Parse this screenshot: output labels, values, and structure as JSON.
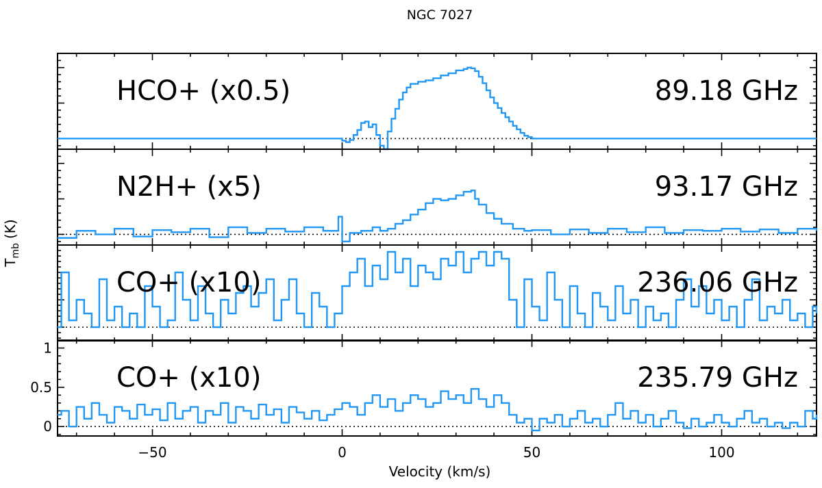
{
  "chart_data": {
    "type": "line",
    "title": "NGC 7027",
    "xlabel": "Velocity (km/s)",
    "ylabel_main": "T",
    "ylabel_sub": "mb",
    "ylabel_unit": "(K)",
    "xlim": [
      -75,
      125
    ],
    "x_ticks": [
      -50,
      0,
      50,
      100
    ],
    "x_tick_labels": [
      "−50",
      "0",
      "50",
      "100"
    ],
    "colors": {
      "spectrum": "#2196f3",
      "axes": "#000000"
    },
    "panels": [
      {
        "label": "HCO+ (x0.5)",
        "frequency": "89.18 GHz",
        "ylim": [
          -0.15,
          1.2
        ],
        "points": [
          [
            -75,
            0.0
          ],
          [
            -60,
            0.0
          ],
          [
            -40,
            0.0
          ],
          [
            -20,
            0.0
          ],
          [
            -2,
            0.0
          ],
          [
            0,
            -0.03
          ],
          [
            1,
            -0.05
          ],
          [
            2,
            -0.02
          ],
          [
            3,
            0.05
          ],
          [
            4,
            0.12
          ],
          [
            5,
            0.22
          ],
          [
            6,
            0.24
          ],
          [
            7,
            0.16
          ],
          [
            8,
            0.2
          ],
          [
            9,
            0.05
          ],
          [
            10,
            -0.1
          ],
          [
            11,
            -0.18
          ],
          [
            12,
            0.1
          ],
          [
            13,
            0.28
          ],
          [
            14,
            0.42
          ],
          [
            15,
            0.55
          ],
          [
            16,
            0.65
          ],
          [
            17,
            0.72
          ],
          [
            18,
            0.77
          ],
          [
            20,
            0.8
          ],
          [
            22,
            0.82
          ],
          [
            24,
            0.85
          ],
          [
            26,
            0.89
          ],
          [
            28,
            0.92
          ],
          [
            30,
            0.96
          ],
          [
            32,
            0.98
          ],
          [
            33,
            1.0
          ],
          [
            34,
            0.99
          ],
          [
            35,
            0.95
          ],
          [
            36,
            0.87
          ],
          [
            37,
            0.78
          ],
          [
            38,
            0.68
          ],
          [
            39,
            0.58
          ],
          [
            40,
            0.5
          ],
          [
            41,
            0.43
          ],
          [
            42,
            0.36
          ],
          [
            43,
            0.3
          ],
          [
            44,
            0.24
          ],
          [
            45,
            0.18
          ],
          [
            46,
            0.13
          ],
          [
            47,
            0.08
          ],
          [
            48,
            0.04
          ],
          [
            49,
            0.02
          ],
          [
            50,
            0.0
          ],
          [
            70,
            0.0
          ],
          [
            90,
            0.0
          ],
          [
            110,
            0.0
          ],
          [
            125,
            0.0
          ]
        ]
      },
      {
        "label": "N2H+    (x5)",
        "frequency": "93.17 GHz",
        "ylim": [
          -0.15,
          1.2
        ],
        "points": [
          [
            -75,
            -0.05
          ],
          [
            -70,
            0.05
          ],
          [
            -65,
            0.0
          ],
          [
            -60,
            0.08
          ],
          [
            -55,
            -0.03
          ],
          [
            -50,
            0.06
          ],
          [
            -45,
            0.03
          ],
          [
            -40,
            0.08
          ],
          [
            -35,
            -0.04
          ],
          [
            -30,
            0.1
          ],
          [
            -25,
            0.02
          ],
          [
            -20,
            0.08
          ],
          [
            -15,
            0.04
          ],
          [
            -10,
            0.1
          ],
          [
            -5,
            0.05
          ],
          [
            -1,
            0.25
          ],
          [
            0,
            -0.1
          ],
          [
            2,
            0.02
          ],
          [
            5,
            0.05
          ],
          [
            8,
            0.1
          ],
          [
            10,
            0.05
          ],
          [
            12,
            0.08
          ],
          [
            14,
            0.15
          ],
          [
            16,
            0.2
          ],
          [
            18,
            0.28
          ],
          [
            20,
            0.35
          ],
          [
            22,
            0.44
          ],
          [
            24,
            0.5
          ],
          [
            26,
            0.48
          ],
          [
            28,
            0.5
          ],
          [
            30,
            0.55
          ],
          [
            32,
            0.6
          ],
          [
            34,
            0.62
          ],
          [
            35,
            0.5
          ],
          [
            36,
            0.42
          ],
          [
            38,
            0.3
          ],
          [
            40,
            0.22
          ],
          [
            42,
            0.15
          ],
          [
            45,
            0.08
          ],
          [
            48,
            0.05
          ],
          [
            50,
            0.06
          ],
          [
            55,
            0.0
          ],
          [
            60,
            0.07
          ],
          [
            65,
            0.02
          ],
          [
            70,
            0.08
          ],
          [
            75,
            0.03
          ],
          [
            80,
            0.1
          ],
          [
            85,
            0.02
          ],
          [
            90,
            0.06
          ],
          [
            95,
            0.05
          ],
          [
            100,
            0.08
          ],
          [
            105,
            0.04
          ],
          [
            110,
            0.07
          ],
          [
            115,
            0.02
          ],
          [
            120,
            0.08
          ],
          [
            125,
            0.05
          ]
        ]
      },
      {
        "label": "CO+  (x10)",
        "frequency": "236.06 GHz",
        "ylim": [
          0.9,
          1.6
        ],
        "points": [
          [
            -75,
            1.0
          ],
          [
            -74,
            1.4
          ],
          [
            -72,
            1.05
          ],
          [
            -70,
            1.2
          ],
          [
            -68,
            1.1
          ],
          [
            -66,
            1.0
          ],
          [
            -64,
            1.35
          ],
          [
            -62,
            1.05
          ],
          [
            -60,
            1.15
          ],
          [
            -58,
            1.0
          ],
          [
            -56,
            1.1
          ],
          [
            -54,
            1.0
          ],
          [
            -52,
            1.3
          ],
          [
            -50,
            1.15
          ],
          [
            -48,
            1.0
          ],
          [
            -46,
            1.05
          ],
          [
            -44,
            1.4
          ],
          [
            -42,
            1.2
          ],
          [
            -40,
            1.05
          ],
          [
            -38,
            1.3
          ],
          [
            -36,
            1.1
          ],
          [
            -34,
            1.0
          ],
          [
            -32,
            1.2
          ],
          [
            -30,
            1.1
          ],
          [
            -28,
            1.25
          ],
          [
            -26,
            1.3
          ],
          [
            -24,
            1.15
          ],
          [
            -22,
            1.25
          ],
          [
            -20,
            1.35
          ],
          [
            -18,
            1.05
          ],
          [
            -16,
            1.2
          ],
          [
            -14,
            1.35
          ],
          [
            -12,
            1.1
          ],
          [
            -10,
            1.0
          ],
          [
            -8,
            1.25
          ],
          [
            -6,
            1.15
          ],
          [
            -4,
            1.0
          ],
          [
            -2,
            1.1
          ],
          [
            0,
            1.3
          ],
          [
            2,
            1.4
          ],
          [
            4,
            1.5
          ],
          [
            6,
            1.3
          ],
          [
            8,
            1.45
          ],
          [
            10,
            1.35
          ],
          [
            12,
            1.55
          ],
          [
            14,
            1.4
          ],
          [
            16,
            1.5
          ],
          [
            18,
            1.3
          ],
          [
            20,
            1.45
          ],
          [
            22,
            1.4
          ],
          [
            24,
            1.35
          ],
          [
            26,
            1.5
          ],
          [
            28,
            1.45
          ],
          [
            30,
            1.55
          ],
          [
            32,
            1.4
          ],
          [
            34,
            1.5
          ],
          [
            36,
            1.55
          ],
          [
            38,
            1.45
          ],
          [
            40,
            1.55
          ],
          [
            42,
            1.5
          ],
          [
            44,
            1.2
          ],
          [
            46,
            1.0
          ],
          [
            48,
            1.35
          ],
          [
            50,
            1.15
          ],
          [
            52,
            1.05
          ],
          [
            54,
            1.4
          ],
          [
            56,
            1.2
          ],
          [
            58,
            1.0
          ],
          [
            60,
            1.3
          ],
          [
            62,
            1.1
          ],
          [
            64,
            1.0
          ],
          [
            66,
            1.25
          ],
          [
            68,
            1.15
          ],
          [
            70,
            1.05
          ],
          [
            72,
            1.3
          ],
          [
            74,
            1.1
          ],
          [
            76,
            1.2
          ],
          [
            78,
            1.0
          ],
          [
            80,
            1.15
          ],
          [
            82,
            1.05
          ],
          [
            84,
            1.1
          ],
          [
            86,
            1.0
          ],
          [
            88,
            1.2
          ],
          [
            90,
            1.35
          ],
          [
            92,
            1.15
          ],
          [
            94,
            1.3
          ],
          [
            96,
            1.1
          ],
          [
            98,
            1.2
          ],
          [
            100,
            1.05
          ],
          [
            102,
            1.15
          ],
          [
            104,
            1.0
          ],
          [
            106,
            1.2
          ],
          [
            108,
            1.35
          ],
          [
            110,
            1.05
          ],
          [
            112,
            1.15
          ],
          [
            114,
            1.1
          ],
          [
            116,
            1.2
          ],
          [
            118,
            1.05
          ],
          [
            120,
            1.1
          ],
          [
            122,
            1.0
          ],
          [
            124,
            1.15
          ],
          [
            125,
            1.1
          ]
        ]
      },
      {
        "label": "CO+  (x10)",
        "frequency": "235.79 GHz",
        "ylim": [
          -0.12,
          1.1
        ],
        "y_ticks": [
          0,
          0.5,
          1
        ],
        "y_tick_labels": [
          "0",
          "0.5",
          "1"
        ],
        "points": [
          [
            -75,
            0.15
          ],
          [
            -74,
            0.2
          ],
          [
            -72,
            0.0
          ],
          [
            -70,
            0.25
          ],
          [
            -68,
            0.1
          ],
          [
            -66,
            0.3
          ],
          [
            -64,
            0.15
          ],
          [
            -62,
            0.05
          ],
          [
            -60,
            0.25
          ],
          [
            -58,
            0.2
          ],
          [
            -56,
            0.1
          ],
          [
            -54,
            0.28
          ],
          [
            -52,
            0.15
          ],
          [
            -50,
            0.22
          ],
          [
            -48,
            0.08
          ],
          [
            -46,
            0.3
          ],
          [
            -44,
            0.1
          ],
          [
            -42,
            0.2
          ],
          [
            -40,
            0.25
          ],
          [
            -38,
            0.05
          ],
          [
            -36,
            0.2
          ],
          [
            -34,
            0.15
          ],
          [
            -32,
            0.3
          ],
          [
            -30,
            0.05
          ],
          [
            -28,
            0.25
          ],
          [
            -26,
            0.2
          ],
          [
            -24,
            0.1
          ],
          [
            -22,
            0.28
          ],
          [
            -20,
            0.15
          ],
          [
            -18,
            0.22
          ],
          [
            -16,
            0.05
          ],
          [
            -14,
            0.25
          ],
          [
            -12,
            0.18
          ],
          [
            -10,
            0.1
          ],
          [
            -8,
            0.2
          ],
          [
            -6,
            0.08
          ],
          [
            -4,
            0.15
          ],
          [
            -2,
            0.22
          ],
          [
            0,
            0.3
          ],
          [
            2,
            0.25
          ],
          [
            4,
            0.15
          ],
          [
            6,
            0.3
          ],
          [
            8,
            0.4
          ],
          [
            10,
            0.25
          ],
          [
            12,
            0.35
          ],
          [
            14,
            0.2
          ],
          [
            16,
            0.3
          ],
          [
            18,
            0.4
          ],
          [
            20,
            0.35
          ],
          [
            22,
            0.25
          ],
          [
            24,
            0.3
          ],
          [
            26,
            0.45
          ],
          [
            28,
            0.35
          ],
          [
            30,
            0.4
          ],
          [
            32,
            0.3
          ],
          [
            34,
            0.48
          ],
          [
            36,
            0.35
          ],
          [
            38,
            0.25
          ],
          [
            40,
            0.4
          ],
          [
            42,
            0.3
          ],
          [
            44,
            0.15
          ],
          [
            46,
            0.05
          ],
          [
            48,
            0.1
          ],
          [
            50,
            -0.05
          ],
          [
            52,
            0.1
          ],
          [
            54,
            0.05
          ],
          [
            56,
            0.15
          ],
          [
            58,
            0.0
          ],
          [
            60,
            0.1
          ],
          [
            62,
            0.2
          ],
          [
            64,
            0.05
          ],
          [
            66,
            0.1
          ],
          [
            68,
            0.0
          ],
          [
            70,
            0.15
          ],
          [
            72,
            0.3
          ],
          [
            74,
            0.1
          ],
          [
            76,
            0.2
          ],
          [
            78,
            0.05
          ],
          [
            80,
            0.15
          ],
          [
            82,
            0.0
          ],
          [
            84,
            0.1
          ],
          [
            86,
            0.2
          ],
          [
            88,
            0.05
          ],
          [
            90,
            -0.02
          ],
          [
            92,
            0.1
          ],
          [
            94,
            0.0
          ],
          [
            96,
            0.05
          ],
          [
            98,
            0.15
          ],
          [
            100,
            0.05
          ],
          [
            102,
            0.0
          ],
          [
            104,
            0.1
          ],
          [
            106,
            0.2
          ],
          [
            108,
            0.05
          ],
          [
            110,
            0.1
          ],
          [
            112,
            0.0
          ],
          [
            114,
            0.05
          ],
          [
            116,
            -0.02
          ],
          [
            118,
            0.05
          ],
          [
            120,
            0.0
          ],
          [
            122,
            0.2
          ],
          [
            124,
            0.1
          ],
          [
            125,
            0.15
          ]
        ]
      }
    ]
  }
}
